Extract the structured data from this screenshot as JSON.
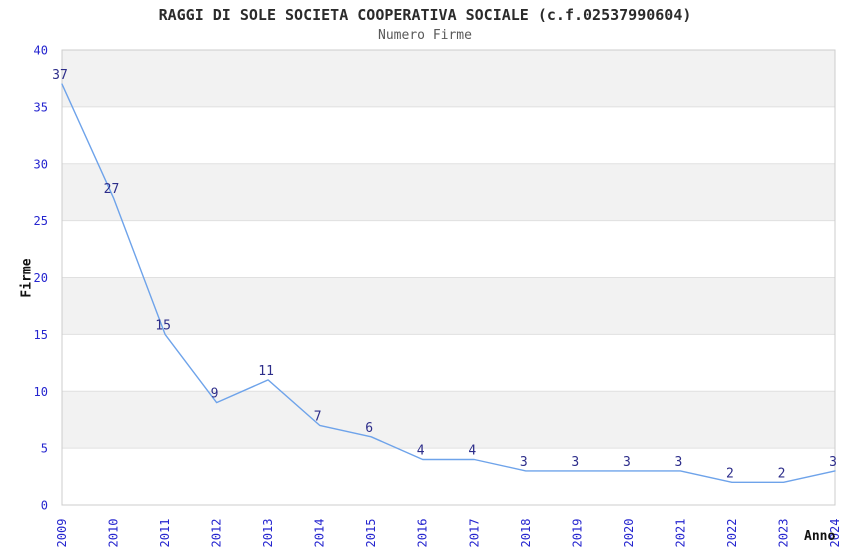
{
  "chart_data": {
    "type": "line",
    "title": "RAGGI DI SOLE SOCIETA COOPERATIVA SOCIALE (c.f.02537990604)",
    "subtitle": "Numero Firme",
    "xlabel": "Anno",
    "ylabel": "Firme",
    "categories": [
      "2009",
      "2010",
      "2011",
      "2012",
      "2013",
      "2014",
      "2015",
      "2016",
      "2017",
      "2018",
      "2019",
      "2020",
      "2021",
      "2022",
      "2023",
      "2024"
    ],
    "series": [
      {
        "name": "Numero Firme",
        "values": [
          37,
          27,
          15,
          9,
          11,
          7,
          6,
          4,
          4,
          3,
          3,
          3,
          3,
          2,
          2,
          3
        ]
      }
    ],
    "ylim": [
      0,
      40
    ],
    "y_ticks": [
      0,
      5,
      10,
      15,
      20,
      25,
      30,
      35,
      40
    ],
    "grid": "horizontal",
    "banded_rows": true,
    "data_labels_visible": true,
    "legend_position": "none",
    "colors": {
      "line": "#6ea3ea",
      "tick_label": "#2525cf",
      "data_label": "#2d2d8a",
      "band": "#f2f2f2",
      "gridline": "#e0e0e0",
      "axis_border": "#cccccc",
      "title": "#2b2b2b",
      "subtitle": "#595959",
      "axis_title": "#111111",
      "background": "#ffffff"
    }
  }
}
